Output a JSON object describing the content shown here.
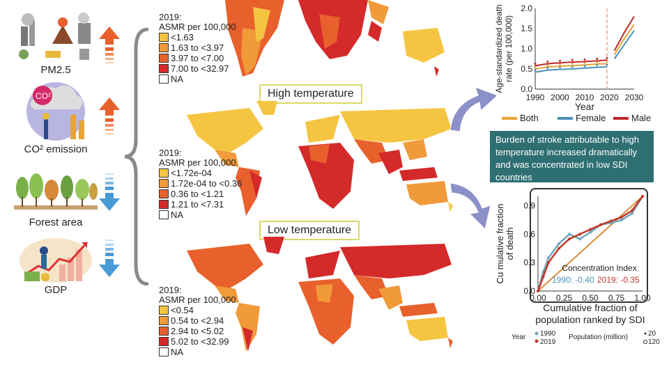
{
  "left_panel": {
    "items": [
      {
        "label": "PM2.5",
        "icon": "pollution-icon",
        "trend": "up"
      },
      {
        "label": "CO² emission",
        "icon": "co2-icon",
        "trend": "up"
      },
      {
        "label": "Forest area",
        "icon": "forest-icon",
        "trend": "down"
      },
      {
        "label": "GDP",
        "icon": "gdp-icon",
        "trend": "down"
      }
    ],
    "co2_badge": "CO²"
  },
  "maps": [
    {
      "year": "2019:",
      "unit": "ASMR per 100,000",
      "legend": [
        "<1.63",
        "1.63 to <3.97",
        "3.97 to <7.00",
        "7.00 to <32.97",
        "NA"
      ]
    },
    {
      "title": "High temperature",
      "year": "2019:",
      "unit": "ASMR per 100,000",
      "legend": [
        "<1.72e-04",
        "1.72e-04 to <0.36",
        "0.36 to <1.21",
        "1.21 to <7.31",
        "NA"
      ]
    },
    {
      "title": "Low temperature",
      "year": "2019:",
      "unit": "ASMR per 100,000",
      "legend": [
        "<0.54",
        "0.54 to <2.94",
        "2.94 to <5.02",
        "5.02 to <32.99",
        "NA"
      ]
    }
  ],
  "legend_colors": [
    "#f5c542",
    "#f09a3a",
    "#e8602c",
    "#d42a2a",
    "#ffffff"
  ],
  "summary_text": "Burden of stroke attributable to high temperature increased dramatically and was concentrated in low SDI countries",
  "chart_data": [
    {
      "type": "line",
      "ylabel": "Age-standardized death rate (per 100,000)",
      "xlabel": "Year",
      "x_ticks": [
        "1990",
        "2000",
        "2010",
        "2020",
        "2030"
      ],
      "y_ticks": [
        "0.0",
        "0.5",
        "1.0",
        "1.5",
        "2.0"
      ],
      "xlim": [
        1990,
        2030
      ],
      "ylim": [
        0,
        2.0
      ],
      "forecast_start": 2019,
      "series": [
        {
          "name": "Both",
          "color": "#e8a534",
          "x": [
            1990,
            1995,
            2000,
            2005,
            2010,
            2015,
            2019,
            2022,
            2026,
            2030
          ],
          "values": [
            0.5,
            0.55,
            0.57,
            0.58,
            0.6,
            0.62,
            0.63,
            0.85,
            1.25,
            1.6
          ]
        },
        {
          "name": "Female",
          "color": "#4a90b8",
          "x": [
            1990,
            1995,
            2000,
            2005,
            2010,
            2015,
            2019,
            2022,
            2026,
            2030
          ],
          "values": [
            0.42,
            0.47,
            0.49,
            0.5,
            0.52,
            0.54,
            0.55,
            0.75,
            1.1,
            1.45
          ]
        },
        {
          "name": "Male",
          "color": "#c0282a",
          "x": [
            1990,
            1995,
            2000,
            2005,
            2010,
            2015,
            2019,
            2022,
            2026,
            2030
          ],
          "values": [
            0.58,
            0.63,
            0.65,
            0.67,
            0.68,
            0.7,
            0.72,
            0.95,
            1.4,
            1.8
          ]
        }
      ]
    },
    {
      "type": "scatter",
      "ylabel": "Cumulative fraction of death",
      "xlabel": "Cumulative fraction of population ranked by SDI",
      "x_ticks": [
        "0.00",
        "0.25",
        "0.50",
        "0.75",
        "1.00"
      ],
      "y_ticks": [
        "0.0",
        "0.3",
        "0.6",
        "0.9"
      ],
      "xlim": [
        0,
        1
      ],
      "ylim": [
        0,
        1
      ],
      "concentration_title": "Concentration Index",
      "ci_1990": "1990: -0.40",
      "ci_2019": "2019: -0.35",
      "legend_year_label": "Year",
      "legend_years": [
        "1990",
        "2019"
      ],
      "legend_pop_label": "Population (million)",
      "legend_pop_sizes": [
        "20",
        "120"
      ],
      "series": [
        {
          "name": "1990",
          "color": "#6fa8b8",
          "x": [
            0,
            0.05,
            0.1,
            0.2,
            0.3,
            0.4,
            0.5,
            0.6,
            0.7,
            0.8,
            0.9,
            1.0
          ],
          "values": [
            0,
            0.2,
            0.35,
            0.5,
            0.6,
            0.55,
            0.62,
            0.7,
            0.72,
            0.75,
            0.82,
            1.0
          ]
        },
        {
          "name": "2019",
          "color": "#c0382a",
          "x": [
            0,
            0.05,
            0.1,
            0.2,
            0.3,
            0.4,
            0.5,
            0.6,
            0.7,
            0.8,
            0.9,
            1.0
          ],
          "values": [
            0,
            0.15,
            0.3,
            0.45,
            0.55,
            0.6,
            0.65,
            0.7,
            0.74,
            0.78,
            0.85,
            1.0
          ]
        }
      ]
    }
  ]
}
